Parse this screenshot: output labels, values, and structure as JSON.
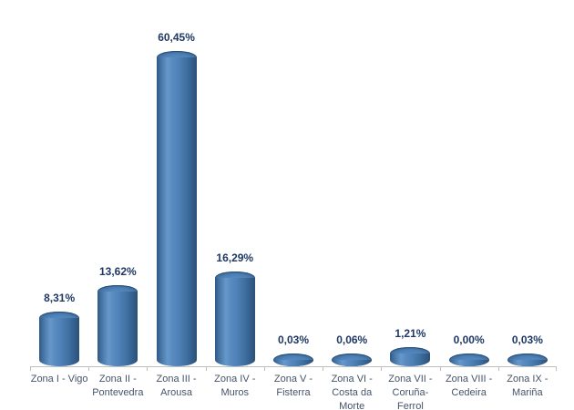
{
  "chart": {
    "background": "#FFFFFF",
    "axis_color": "#BFBFBF",
    "bar_base_color": "#4F81BD",
    "value_label_color": "#1F3864",
    "category_label_color": "#44546A"
  },
  "chart_data": {
    "type": "bar",
    "style": "3d-cylinder",
    "title": "",
    "xlabel": "",
    "ylabel": "",
    "unit": "%",
    "decimal_separator": ",",
    "grid": false,
    "legend": false,
    "ylim": [
      0,
      65
    ],
    "categories": [
      "Zona I - Vigo",
      "Zona II -\nPontevedra",
      "Zona III -\nArousa",
      "Zona IV -\nMuros",
      "Zona V -\nFisterra",
      "Zona VI -\nCosta da\nMorte",
      "Zona VII -\nCoruña-\nFerrol",
      "Zona VIII -\nCedeira",
      "Zona IX -\nMariña"
    ],
    "values": [
      8.31,
      13.62,
      60.45,
      16.29,
      0.03,
      0.06,
      1.21,
      0.0,
      0.03
    ],
    "value_labels": [
      "8,31%",
      "13,62%",
      "60,45%",
      "16,29%",
      "0,03%",
      "0,06%",
      "1,21%",
      "0,00%",
      "0,03%"
    ]
  }
}
